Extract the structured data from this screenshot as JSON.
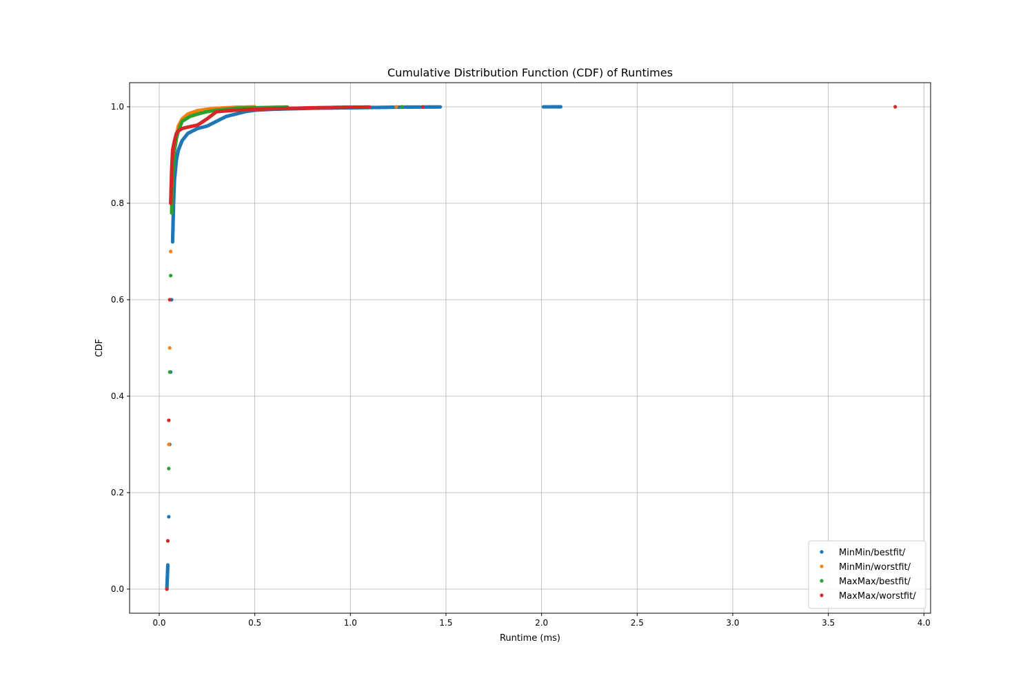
{
  "chart_data": {
    "type": "scatter",
    "title": "Cumulative Distribution Function (CDF) of Runtimes",
    "xlabel": "Runtime (ms)",
    "ylabel": "CDF",
    "xlim": [
      -0.155,
      4.035
    ],
    "ylim": [
      -0.05,
      1.05
    ],
    "xticks": [
      0.0,
      0.5,
      1.0,
      1.5,
      2.0,
      2.5,
      3.0,
      3.5,
      4.0
    ],
    "xtick_labels": [
      "0.0",
      "0.5",
      "1.0",
      "1.5",
      "2.0",
      "2.5",
      "3.0",
      "3.5",
      "4.0"
    ],
    "yticks": [
      0.0,
      0.2,
      0.4,
      0.6,
      0.8,
      1.0
    ],
    "ytick_labels": [
      "0.0",
      "0.2",
      "0.4",
      "0.6",
      "0.8",
      "1.0"
    ],
    "grid": true,
    "legend_position": "lower-right",
    "series": [
      {
        "name": "MinMin/bestfit/",
        "color": "#1f77b4",
        "x": [
          0.04,
          0.045,
          0.05,
          0.055,
          0.06,
          0.065,
          0.07,
          0.075,
          0.08,
          0.09,
          0.1,
          0.12,
          0.15,
          0.2,
          0.25,
          0.3,
          0.35,
          0.4,
          0.45,
          0.5,
          0.6,
          0.8,
          1.0,
          1.1,
          1.2,
          1.25,
          1.33,
          1.47,
          2.01,
          2.1
        ],
        "y": [
          0.0,
          0.05,
          0.15,
          0.3,
          0.45,
          0.6,
          0.72,
          0.8,
          0.85,
          0.89,
          0.91,
          0.93,
          0.945,
          0.955,
          0.96,
          0.97,
          0.98,
          0.985,
          0.99,
          0.993,
          0.995,
          0.997,
          0.998,
          0.9985,
          0.999,
          0.9993,
          0.9995,
          0.9997,
          0.9999,
          1.0
        ]
      },
      {
        "name": "MinMin/worstfit/",
        "color": "#ff7f0e",
        "x": [
          0.04,
          0.045,
          0.05,
          0.055,
          0.06,
          0.065,
          0.07,
          0.08,
          0.09,
          0.1,
          0.12,
          0.15,
          0.2,
          0.25,
          0.3,
          0.35,
          0.4,
          0.5
        ],
        "y": [
          0.0,
          0.1,
          0.3,
          0.5,
          0.7,
          0.82,
          0.88,
          0.92,
          0.94,
          0.96,
          0.975,
          0.985,
          0.992,
          0.995,
          0.997,
          0.998,
          0.999,
          1.0
        ]
      },
      {
        "name": "MinMin/worstfit/",
        "color": "#ff7f0e",
        "x": [
          1.24
        ],
        "y": [
          1.0
        ]
      },
      {
        "name": "MaxMax/bestfit/",
        "color": "#2ca02c",
        "x": [
          0.04,
          0.045,
          0.05,
          0.055,
          0.06,
          0.065,
          0.07,
          0.08,
          0.09,
          0.1,
          0.11,
          0.12,
          0.14,
          0.16,
          0.2,
          0.25,
          0.3,
          0.35,
          0.4,
          0.5,
          0.6,
          0.67,
          1.27
        ],
        "y": [
          0.0,
          0.1,
          0.25,
          0.45,
          0.65,
          0.78,
          0.86,
          0.91,
          0.935,
          0.95,
          0.96,
          0.97,
          0.975,
          0.98,
          0.985,
          0.99,
          0.993,
          0.995,
          0.997,
          0.998,
          0.999,
          0.9995,
          1.0
        ]
      },
      {
        "name": "MaxMax/worstfit/",
        "color": "#d62728",
        "x": [
          0.04,
          0.045,
          0.05,
          0.055,
          0.06,
          0.065,
          0.07,
          0.08,
          0.09,
          0.1,
          0.12,
          0.15,
          0.2,
          0.25,
          0.3,
          0.4,
          0.5,
          0.6,
          0.7,
          0.8,
          0.88,
          0.94,
          1.1,
          1.38,
          3.85
        ],
        "y": [
          0.0,
          0.1,
          0.35,
          0.6,
          0.8,
          0.87,
          0.91,
          0.93,
          0.945,
          0.95,
          0.955,
          0.958,
          0.962,
          0.975,
          0.99,
          0.993,
          0.995,
          0.996,
          0.997,
          0.998,
          0.9985,
          0.999,
          0.9995,
          0.9998,
          1.0
        ]
      }
    ]
  }
}
